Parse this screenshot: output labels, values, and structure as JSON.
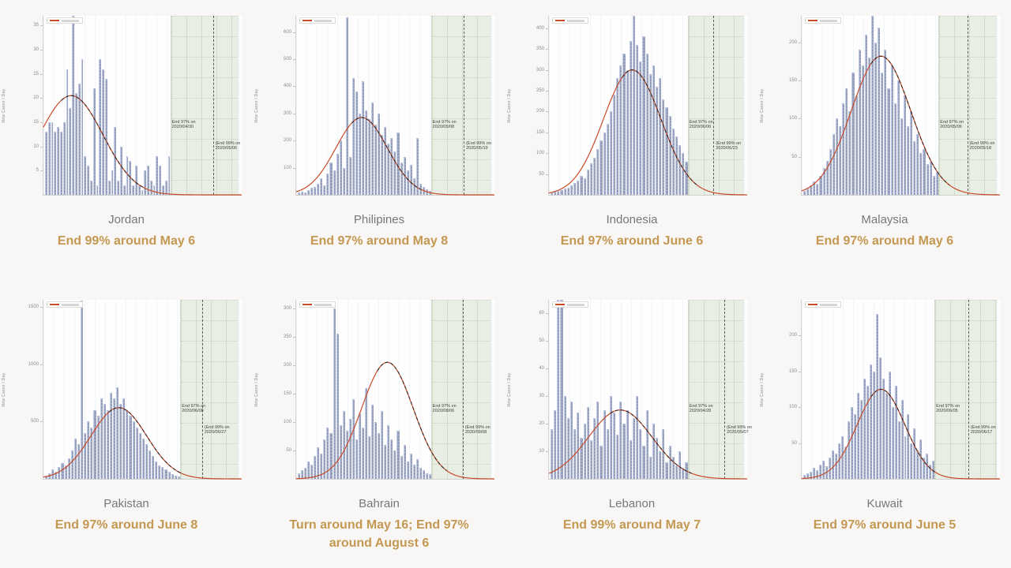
{
  "page": {
    "background": "#f8f7f5"
  },
  "styles": {
    "bar_color": "#8d96b6",
    "bar_edge_color": "#bcc8e6",
    "curve_color": "#c84b28",
    "dashed_curve_color": "#232323",
    "band_color": "#e8eee3",
    "caption_color": "#c49852",
    "country_color": "#787878"
  },
  "chart_data": [
    {
      "type": "bar",
      "country": "Jordan",
      "caption": "End 99% around May 6",
      "ylabel": "New Cases / Day",
      "yticks": [
        5,
        10,
        15,
        20,
        25,
        30,
        35
      ],
      "ymax": 37,
      "bar_values": [
        13,
        15,
        15,
        13,
        14,
        13,
        15,
        26,
        18,
        37,
        21,
        23,
        28,
        8,
        6,
        3,
        22,
        2,
        28,
        26,
        24,
        3,
        5,
        14,
        3,
        10,
        2,
        8,
        7,
        2,
        6,
        2,
        1,
        5,
        6,
        3,
        2,
        8,
        6,
        2,
        3,
        8
      ],
      "curve": {
        "amplitude": 20.5,
        "center_frac": 0.14,
        "sigma_frac": 0.16
      },
      "band": {
        "start_frac": 0.64,
        "end_frac": 0.985,
        "dashed_line_frac": 0.855
      },
      "annotations": {
        "end97_label": "End 97% on",
        "end97_date": "2020/04/30",
        "end99_label": "(End 99% on",
        "end99_date": "2020/05/06"
      }
    },
    {
      "type": "bar",
      "country": "Philipines",
      "caption": "End 97% around May 8",
      "ylabel": "New Cases / Day",
      "yticks": [
        100,
        200,
        300,
        400,
        500,
        600
      ],
      "ymax": 660,
      "bar_values": [
        8,
        12,
        10,
        18,
        25,
        30,
        40,
        60,
        35,
        80,
        120,
        90,
        150,
        200,
        100,
        655,
        140,
        430,
        380,
        300,
        420,
        310,
        280,
        340,
        260,
        300,
        220,
        250,
        190,
        210,
        160,
        230,
        120,
        140,
        90,
        110,
        60,
        210,
        40,
        30,
        20,
        15
      ],
      "curve": {
        "amplitude": 285,
        "center_frac": 0.33,
        "sigma_frac": 0.13
      },
      "band": {
        "start_frac": 0.68,
        "end_frac": 0.985,
        "dashed_line_frac": 0.845
      },
      "annotations": {
        "end97_label": "End 97% on",
        "end97_date": "2020/05/08",
        "end99_label": "(End 99% on",
        "end99_date": "2020/05/19"
      }
    },
    {
      "type": "bar",
      "country": "Indonesia",
      "caption": "End 97% around June 6",
      "ylabel": "New Cases / Day",
      "yticks": [
        50,
        100,
        150,
        200,
        250,
        300,
        350,
        400
      ],
      "ymax": 430,
      "bar_values": [
        5,
        8,
        10,
        12,
        15,
        18,
        22,
        28,
        35,
        45,
        40,
        60,
        75,
        90,
        110,
        130,
        150,
        170,
        200,
        240,
        280,
        310,
        340,
        300,
        370,
        430,
        360,
        320,
        380,
        340,
        290,
        310,
        260,
        280,
        230,
        210,
        190,
        160,
        140,
        120,
        100,
        80
      ],
      "curve": {
        "amplitude": 300,
        "center_frac": 0.42,
        "sigma_frac": 0.145
      },
      "band": {
        "start_frac": 0.7,
        "end_frac": 0.985,
        "dashed_line_frac": 0.83
      },
      "annotations": {
        "end97_label": "End 97% on",
        "end97_date": "2020/06/06",
        "end99_label": "(End 99% on",
        "end99_date": "2020/06/23"
      }
    },
    {
      "type": "bar",
      "country": "Malaysia",
      "caption": "End 97% around May 6",
      "ylabel": "New Cases / Day",
      "yticks": [
        50,
        100,
        150,
        200
      ],
      "ymax": 235,
      "bar_values": [
        5,
        8,
        12,
        18,
        15,
        25,
        35,
        45,
        60,
        80,
        100,
        90,
        120,
        140,
        110,
        160,
        130,
        190,
        170,
        210,
        180,
        235,
        200,
        220,
        160,
        190,
        140,
        170,
        120,
        150,
        100,
        130,
        90,
        110,
        70,
        80,
        55,
        60,
        40,
        45,
        25,
        30
      ],
      "curve": {
        "amplitude": 182,
        "center_frac": 0.4,
        "sigma_frac": 0.15
      },
      "band": {
        "start_frac": 0.69,
        "end_frac": 0.985,
        "dashed_line_frac": 0.835
      },
      "annotations": {
        "end97_label": "End 97% on",
        "end97_date": "2020/05/06",
        "end99_label": "(End 99% on",
        "end99_date": "2020/05/18"
      }
    },
    {
      "type": "bar",
      "country": "Pakistan",
      "caption": "End 97% around June 8",
      "ylabel": "New Cases / Day",
      "yticks": [
        500,
        1000,
        1500
      ],
      "ymax": 1560,
      "bar_values": [
        30,
        50,
        80,
        60,
        100,
        140,
        120,
        180,
        250,
        350,
        300,
        1550,
        400,
        500,
        450,
        600,
        550,
        700,
        650,
        600,
        750,
        700,
        800,
        650,
        700,
        600,
        550,
        500,
        450,
        400,
        350,
        300,
        250,
        200,
        150,
        120,
        100,
        80,
        60,
        40,
        30,
        20
      ],
      "curve": {
        "amplitude": 620,
        "center_frac": 0.38,
        "sigma_frac": 0.14
      },
      "band": {
        "start_frac": 0.69,
        "end_frac": 0.985,
        "dashed_line_frac": 0.8
      },
      "annotations": {
        "end97_label": "End 97% on",
        "end97_date": "2020/06/08",
        "end99_label": "(End 99% on",
        "end99_date": "2020/06/27"
      }
    },
    {
      "type": "bar",
      "country": "Bahrain",
      "caption": "Turn around May 16; End 97% around August 6",
      "ylabel": "New Cases / Day",
      "yticks": [
        50,
        100,
        150,
        200,
        250,
        300
      ],
      "ymax": 315,
      "bar_values": [
        10,
        15,
        20,
        30,
        25,
        40,
        55,
        45,
        70,
        90,
        80,
        300,
        255,
        95,
        120,
        85,
        105,
        140,
        70,
        115,
        90,
        160,
        75,
        130,
        100,
        80,
        120,
        60,
        95,
        70,
        50,
        85,
        40,
        60,
        30,
        45,
        25,
        35,
        20,
        15,
        10,
        8
      ],
      "curve": {
        "amplitude": 205,
        "center_frac": 0.46,
        "sigma_frac": 0.13
      },
      "band": {
        "start_frac": 0.68,
        "end_frac": 0.985,
        "dashed_line_frac": 0.84
      },
      "annotations": {
        "end97_label": "End 97% on",
        "end97_date": "2020/08/06",
        "end99_label": "(End 99% on",
        "end99_date": "2020/09/08"
      }
    },
    {
      "type": "bar",
      "country": "Lebanon",
      "caption": "End 99% around May 7",
      "ylabel": "New Cases / Day",
      "yticks": [
        10,
        20,
        30,
        40,
        50,
        60
      ],
      "ymax": 65,
      "bar_values": [
        18,
        25,
        66,
        66,
        30,
        22,
        28,
        18,
        24,
        15,
        20,
        26,
        14,
        22,
        28,
        12,
        25,
        18,
        30,
        24,
        16,
        28,
        20,
        25,
        14,
        22,
        30,
        18,
        12,
        25,
        8,
        20,
        15,
        10,
        18,
        6,
        12,
        8,
        5,
        10,
        4,
        6
      ],
      "curve": {
        "amplitude": 25,
        "center_frac": 0.36,
        "sigma_frac": 0.16
      },
      "band": {
        "start_frac": 0.7,
        "end_frac": 0.985,
        "dashed_line_frac": 0.885
      },
      "annotations": {
        "end97_label": "End 97% on",
        "end97_date": "2020/04/28",
        "end99_label": "(End 99% on",
        "end99_date": "2020/05/07"
      }
    },
    {
      "type": "bar",
      "country": "Kuwait",
      "caption": "End 97% around June 5",
      "ylabel": "New Cases / Day",
      "yticks": [
        50,
        100,
        150,
        200
      ],
      "ymax": 250,
      "bar_values": [
        5,
        8,
        10,
        15,
        12,
        20,
        25,
        18,
        30,
        40,
        35,
        50,
        60,
        45,
        80,
        100,
        90,
        120,
        110,
        140,
        130,
        160,
        150,
        230,
        170,
        140,
        120,
        150,
        100,
        130,
        80,
        110,
        60,
        90,
        50,
        70,
        40,
        55,
        30,
        35,
        20,
        25
      ],
      "curve": {
        "amplitude": 125,
        "center_frac": 0.4,
        "sigma_frac": 0.12
      },
      "band": {
        "start_frac": 0.67,
        "end_frac": 0.985,
        "dashed_line_frac": 0.84
      },
      "annotations": {
        "end97_label": "End 97% on",
        "end97_date": "2020/06/05",
        "end99_label": "(End 99% on",
        "end99_date": "2020/06/17"
      }
    }
  ]
}
